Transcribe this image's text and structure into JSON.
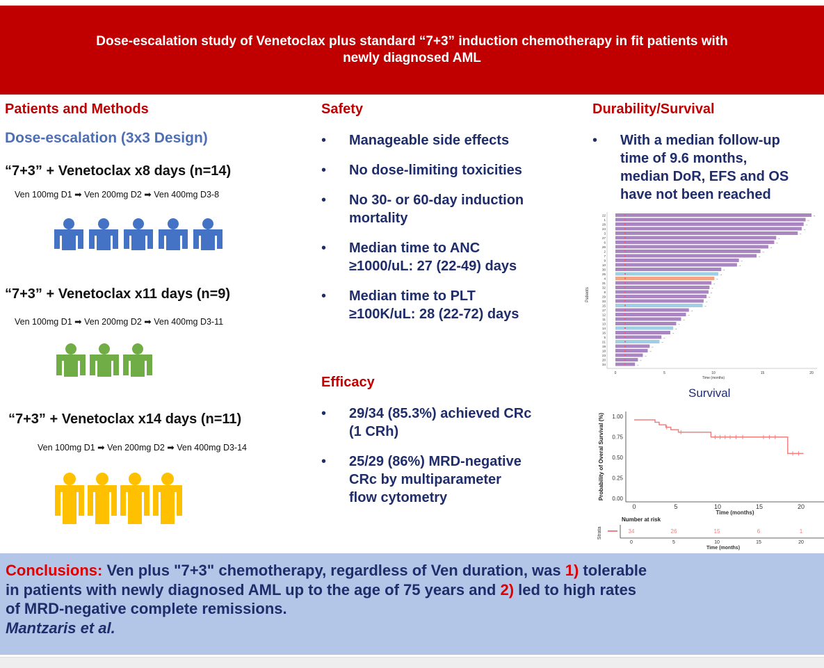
{
  "banner": {
    "title_line1": "Dose-escalation study of  Venetoclax plus standard “7+3” induction chemotherapy in fit patients with",
    "title_line2": "newly diagnosed AML"
  },
  "methods": {
    "heading": "Patients and Methods",
    "subheading": "Dose-escalation (3x3 Design)",
    "arms": [
      {
        "title": "“7+3” + Venetoclax x8 days (n=14)",
        "schedule": "Ven 100mg D1 ➡ Ven 200mg D2 ➡ Ven 400mg D3-8",
        "icon_count": 5,
        "color": "#4472c4"
      },
      {
        "title": "“7+3” + Venetoclax x11 days (n=9)",
        "schedule": "Ven 100mg D1 ➡ Ven 200mg D2 ➡ Ven 400mg D3-11",
        "icon_count": 3,
        "color": "#70ad47"
      },
      {
        "title": "“7+3” + Venetoclax x14 days (n=11)",
        "schedule": "Ven 100mg D1 ➡ Ven 200mg D2 ➡ Ven 400mg D3-14",
        "icon_count": 4,
        "color": "#ffc000"
      }
    ]
  },
  "safety": {
    "heading": "Safety",
    "items": [
      [
        "Manageable side effects"
      ],
      [
        "No dose-limiting toxicities"
      ],
      [
        "No 30- or 60-day induction",
        "mortality"
      ],
      [
        "Median time to ANC",
        "≥1000/uL: 27 (22-49) days"
      ],
      [
        "Median time to PLT",
        "≥100K/uL:  28 (22-72) days"
      ]
    ]
  },
  "efficacy": {
    "heading": "Efficacy",
    "items": [
      [
        "29/34 (85.3%) achieved CRc",
        "(1 CRh)"
      ],
      [
        "25/29 (86%) MRD-negative",
        "CRc by multiparameter",
        "flow cytometry"
      ]
    ]
  },
  "durability": {
    "heading": "Durability/Survival",
    "bullet_lines": [
      "With a median follow-up",
      "time of 9.6 months,",
      "median DoR, EFS and OS",
      "have not been reached"
    ],
    "swimmer": {
      "ylabel": "Patients",
      "xlabel": "Time (months)",
      "x_ticks": [
        "0",
        "5",
        "10",
        "15",
        "20"
      ]
    },
    "survival_title": "Survival"
  },
  "chart_data": [
    {
      "type": "bar",
      "subtype": "swimmer",
      "ylabel": "Patients",
      "xlabel": "Time (months)",
      "xlim": [
        0,
        21
      ],
      "x_ticks": [
        0,
        5,
        10,
        15,
        20
      ],
      "categories": [
        "22",
        "1",
        "28",
        "24",
        "3",
        "27",
        "6",
        "26",
        "2",
        "7",
        "9",
        "10",
        "30",
        "25",
        "4",
        "31",
        "32",
        "8",
        "29",
        "33",
        "15",
        "17",
        "12",
        "11",
        "13",
        "14",
        "16",
        "5",
        "21",
        "19",
        "18",
        "23",
        "20",
        "34"
      ],
      "values": [
        20.0,
        19.4,
        19.2,
        19.0,
        18.6,
        16.4,
        16.2,
        15.6,
        14.8,
        14.4,
        12.6,
        12.4,
        10.8,
        10.5,
        10.1,
        9.8,
        9.6,
        9.5,
        9.3,
        9.0,
        8.9,
        7.5,
        7.2,
        6.7,
        6.2,
        5.9,
        5.6,
        4.7,
        4.5,
        3.5,
        3.3,
        2.8,
        2.3,
        2.0
      ],
      "bar_colors": {
        "default": "#a985c2",
        "light_blue": "#9fcfe6",
        "salmon": "#f1a582"
      }
    },
    {
      "type": "line",
      "subtype": "kaplan-meier",
      "title": "Survival",
      "xlabel": "Time (months)",
      "ylabel": "Probability of Overal Survival (%)",
      "xlim": [
        -2,
        22
      ],
      "ylim": [
        0,
        1
      ],
      "x_ticks": [
        0,
        5,
        10,
        15,
        20
      ],
      "y_ticks": [
        "0.00",
        "0.25",
        "0.50",
        "0.75",
        "1.00"
      ],
      "series": [
        {
          "x": [
            0,
            2.0,
            2.5,
            3.0,
            3.8,
            4.4,
            5.3,
            6.7,
            9.2,
            9.6,
            18.4,
            20.3
          ],
          "y": [
            1.0,
            1.0,
            0.97,
            0.94,
            0.91,
            0.88,
            0.85,
            0.85,
            0.79,
            0.79,
            0.59,
            0.59
          ],
          "color": "#f08080"
        }
      ],
      "risk_table": {
        "title": "Number at risk",
        "ylabel": "Strata",
        "times": [
          0,
          5,
          10,
          15,
          20
        ],
        "counts": [
          "34",
          "26",
          "15",
          "6",
          "1"
        ],
        "xlabel": "Time (months)"
      }
    }
  ],
  "conclusion": {
    "label": "Conclusions:",
    "part1": " Ven plus \"7+3\" chemotherapy, regardless of Ven duration, was ",
    "n1": "1)",
    "part2": " tolerable",
    "line2a": "in patients with newly diagnosed AML up to the age of 75 years and ",
    "n2": "2)",
    "line2b": " led to high rates",
    "line3": "of MRD-negative complete remissions.",
    "author": "Mantzaris et al."
  }
}
